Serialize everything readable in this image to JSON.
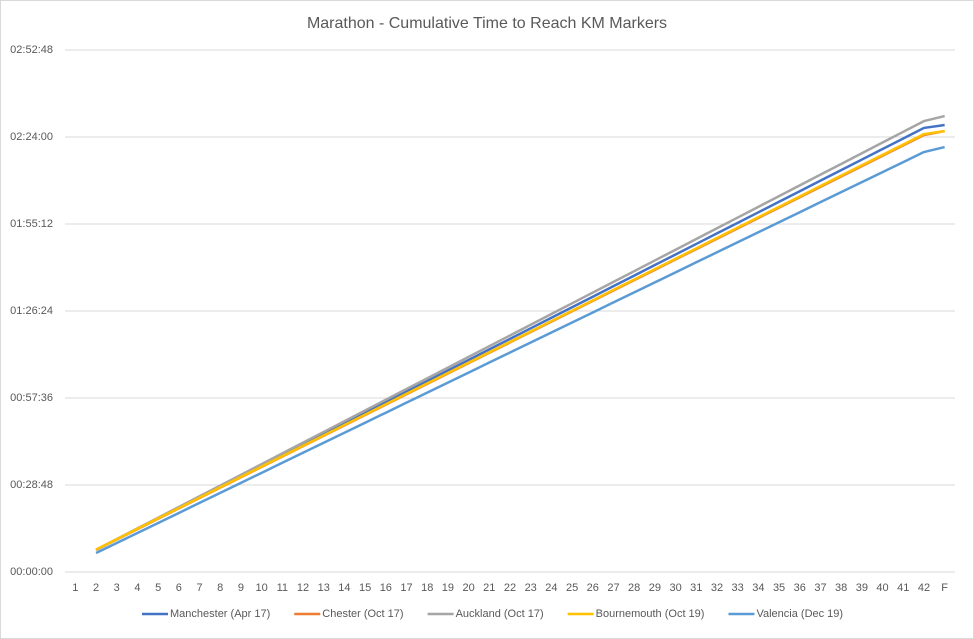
{
  "chart_data": {
    "type": "line",
    "title": "Marathon - Cumulative Time to Reach KM Markers",
    "categories": [
      "1",
      "2",
      "3",
      "4",
      "5",
      "6",
      "7",
      "8",
      "9",
      "10",
      "11",
      "12",
      "13",
      "14",
      "15",
      "16",
      "17",
      "18",
      "19",
      "20",
      "21",
      "22",
      "23",
      "24",
      "25",
      "26",
      "27",
      "28",
      "29",
      "30",
      "31",
      "32",
      "33",
      "34",
      "35",
      "36",
      "37",
      "38",
      "39",
      "40",
      "41",
      "42",
      "F"
    ],
    "ylim": [
      0,
      10368
    ],
    "yticks": [
      {
        "value": 0,
        "label": "00:00:00"
      },
      {
        "value": 1728,
        "label": "00:28:48"
      },
      {
        "value": 3456,
        "label": "00:57:36"
      },
      {
        "value": 5184,
        "label": "01:26:24"
      },
      {
        "value": 6912,
        "label": "01:55:12"
      },
      {
        "value": 8640,
        "label": "02:24:00"
      },
      {
        "value": 10368,
        "label": "02:52:48"
      }
    ],
    "grid": true,
    "legend": "bottom",
    "series": [
      {
        "name": "Manchester (Apr 17)",
        "color": "#4472c4",
        "values": [
          null,
          440,
          650,
          859,
          1069,
          1278,
          1488,
          1697,
          1907,
          2116,
          2326,
          2535,
          2745,
          2954,
          3164,
          3373,
          3583,
          3792,
          4002,
          4211,
          4421,
          4630,
          4840,
          5049,
          5259,
          5468,
          5678,
          5887,
          6097,
          6306,
          6516,
          6725,
          6935,
          7144,
          7354,
          7563,
          7773,
          7982,
          8192,
          8401,
          8611,
          8820,
          8878
        ]
      },
      {
        "name": "Chester (Oct 17)",
        "color": "#ed7d31",
        "values": [
          null,
          440,
          646,
          852,
          1058,
          1264,
          1470,
          1676,
          1882,
          2088,
          2294,
          2500,
          2706,
          2912,
          3118,
          3324,
          3530,
          3736,
          3942,
          4148,
          4354,
          4560,
          4766,
          4972,
          5178,
          5384,
          5590,
          5796,
          6002,
          6208,
          6414,
          6620,
          6826,
          7032,
          7238,
          7444,
          7650,
          7856,
          8062,
          8268,
          8474,
          8680,
          8758
        ]
      },
      {
        "name": "Auckland (Oct 17)",
        "color": "#a5a5a5",
        "values": [
          null,
          440,
          653,
          866,
          1079,
          1292,
          1505,
          1717,
          1930,
          2143,
          2356,
          2569,
          2782,
          2995,
          3208,
          3421,
          3634,
          3846,
          4059,
          4272,
          4485,
          4698,
          4911,
          5124,
          5337,
          5550,
          5763,
          5975,
          6188,
          6401,
          6614,
          6827,
          7040,
          7253,
          7466,
          7679,
          7892,
          8104,
          8317,
          8530,
          8743,
          8956,
          9056
        ]
      },
      {
        "name": "Bournemouth (Oct 19)",
        "color": "#ffc000",
        "values": [
          null,
          445,
          651,
          858,
          1064,
          1270,
          1477,
          1683,
          1889,
          2095,
          2302,
          2508,
          2714,
          2921,
          3127,
          3333,
          3540,
          3746,
          3952,
          4158,
          4365,
          4571,
          4777,
          4984,
          5190,
          5396,
          5603,
          5809,
          6015,
          6221,
          6428,
          6634,
          6840,
          7047,
          7253,
          7459,
          7666,
          7872,
          8078,
          8284,
          8491,
          8697,
          8758
        ]
      },
      {
        "name": "Valencia (Dec 19)",
        "color": "#5b9bd5",
        "values": [
          null,
          377,
          576,
          775,
          974,
          1173,
          1373,
          1572,
          1771,
          1970,
          2169,
          2368,
          2567,
          2766,
          2965,
          3164,
          3364,
          3563,
          3762,
          3961,
          4160,
          4359,
          4558,
          4757,
          4956,
          5155,
          5355,
          5554,
          5753,
          5952,
          6151,
          6350,
          6549,
          6748,
          6947,
          7146,
          7346,
          7545,
          7744,
          7943,
          8142,
          8341,
          8440
        ]
      }
    ]
  }
}
